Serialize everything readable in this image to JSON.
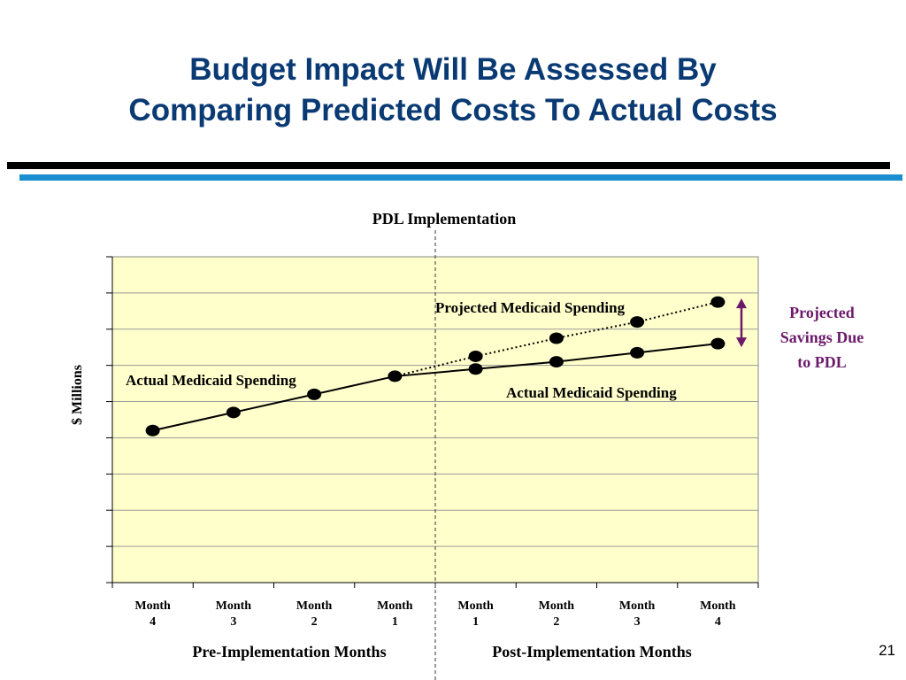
{
  "slide": {
    "title_line1": "Budget Impact Will Be Assessed By",
    "title_line2": "Comparing Predicted Costs To Actual Costs",
    "page_number": "21"
  },
  "colors": {
    "title": "#0a3a73",
    "accent_rule": "#1a8fcf",
    "plot_background": "#ffffcc",
    "savings_annotation": "#6b1a6b"
  },
  "chart_data": {
    "type": "line",
    "categories": [
      "Month\n4",
      "Month\n3",
      "Month\n2",
      "Month\n1",
      "Month\n1",
      "Month\n2",
      "Month\n3",
      "Month\n4"
    ],
    "ylabel": "$ Millions",
    "ylim": [
      0,
      9
    ],
    "grid": true,
    "y_tick_labels": false,
    "series": [
      {
        "name": "Actual Medicaid Spending",
        "style": "solid",
        "values": [
          4.2,
          4.7,
          5.2,
          5.7,
          5.9,
          6.1,
          6.35,
          6.6
        ]
      },
      {
        "name": "Projected Medicaid Spending",
        "style": "dotted",
        "values": [
          null,
          null,
          null,
          5.7,
          6.25,
          6.75,
          7.2,
          7.75
        ]
      }
    ],
    "annotations": {
      "divider_label": "PDL Implementation",
      "actual_label_pre": "Actual Medicaid Spending",
      "actual_label_post": "Actual Medicaid Spending",
      "projected_label": "Projected Medicaid Spending",
      "savings_label": [
        "Projected",
        "Savings Due",
        "to PDL"
      ]
    },
    "group_labels": {
      "pre": "Pre-Implementation Months",
      "post": "Post-Implementation Months"
    }
  }
}
